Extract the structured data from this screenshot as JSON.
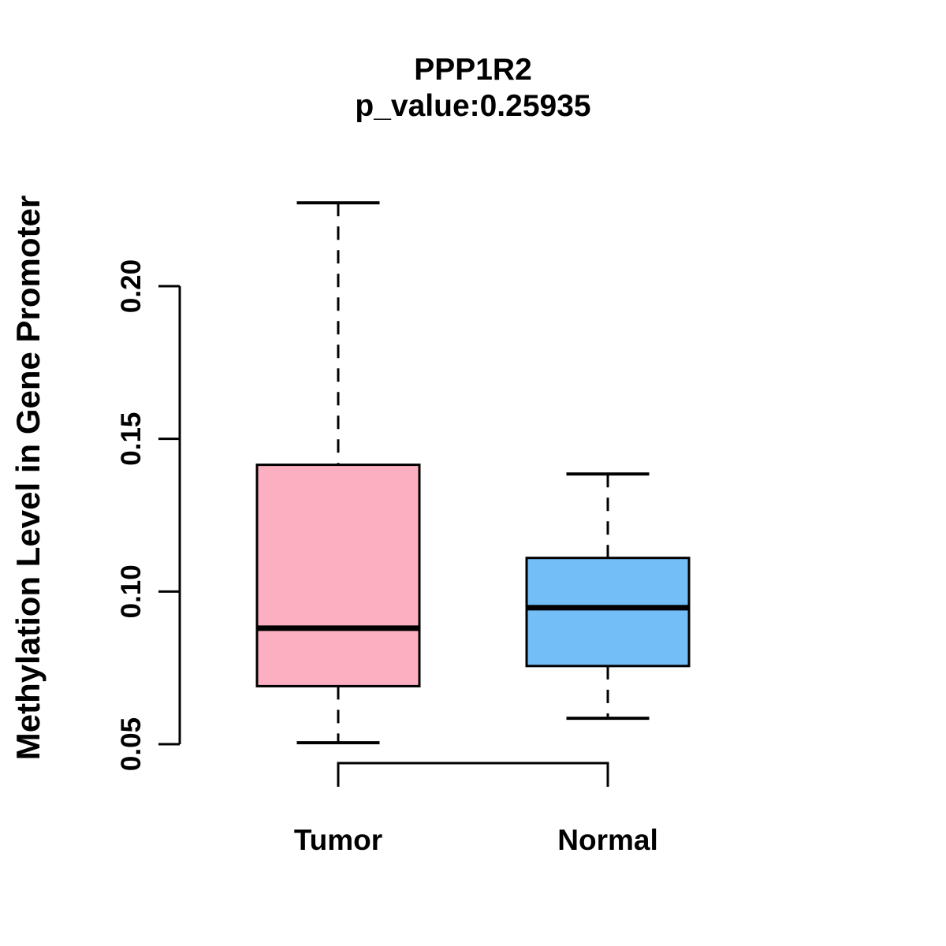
{
  "chart": {
    "title": "PPP1R2",
    "subtitle": "p_value:0.25935",
    "ylabel": "Methylation Level in Gene Promoter"
  },
  "chart_data": {
    "type": "boxplot",
    "title": "PPP1R2",
    "subtitle": "p_value:0.25935",
    "ylabel": "Methylation Level in Gene Promoter",
    "xlabel": "",
    "categories": [
      "Tumor",
      "Normal"
    ],
    "series": [
      {
        "name": "Tumor",
        "whisker_low": 0.0505,
        "q1": 0.069,
        "median": 0.088,
        "q3": 0.1415,
        "whisker_high": 0.2273,
        "fill_color": "#FCAFC1"
      },
      {
        "name": "Normal",
        "whisker_low": 0.0585,
        "q1": 0.0756,
        "median": 0.0947,
        "q3": 0.111,
        "whisker_high": 0.1385,
        "fill_color": "#74BEF8"
      }
    ],
    "yticks": [
      0.05,
      0.1,
      0.15,
      0.2
    ],
    "ytick_labels": [
      "0.05",
      "0.10",
      "0.15",
      "0.20"
    ],
    "ylim": [
      0.0505,
      0.2273
    ],
    "grid": false,
    "legend": "none",
    "comparison_bracket": {
      "from": "Tumor",
      "to": "Normal"
    },
    "box_border_color": "#000000",
    "whisker_style": "dashed",
    "background_color": "#FFFFFF"
  }
}
